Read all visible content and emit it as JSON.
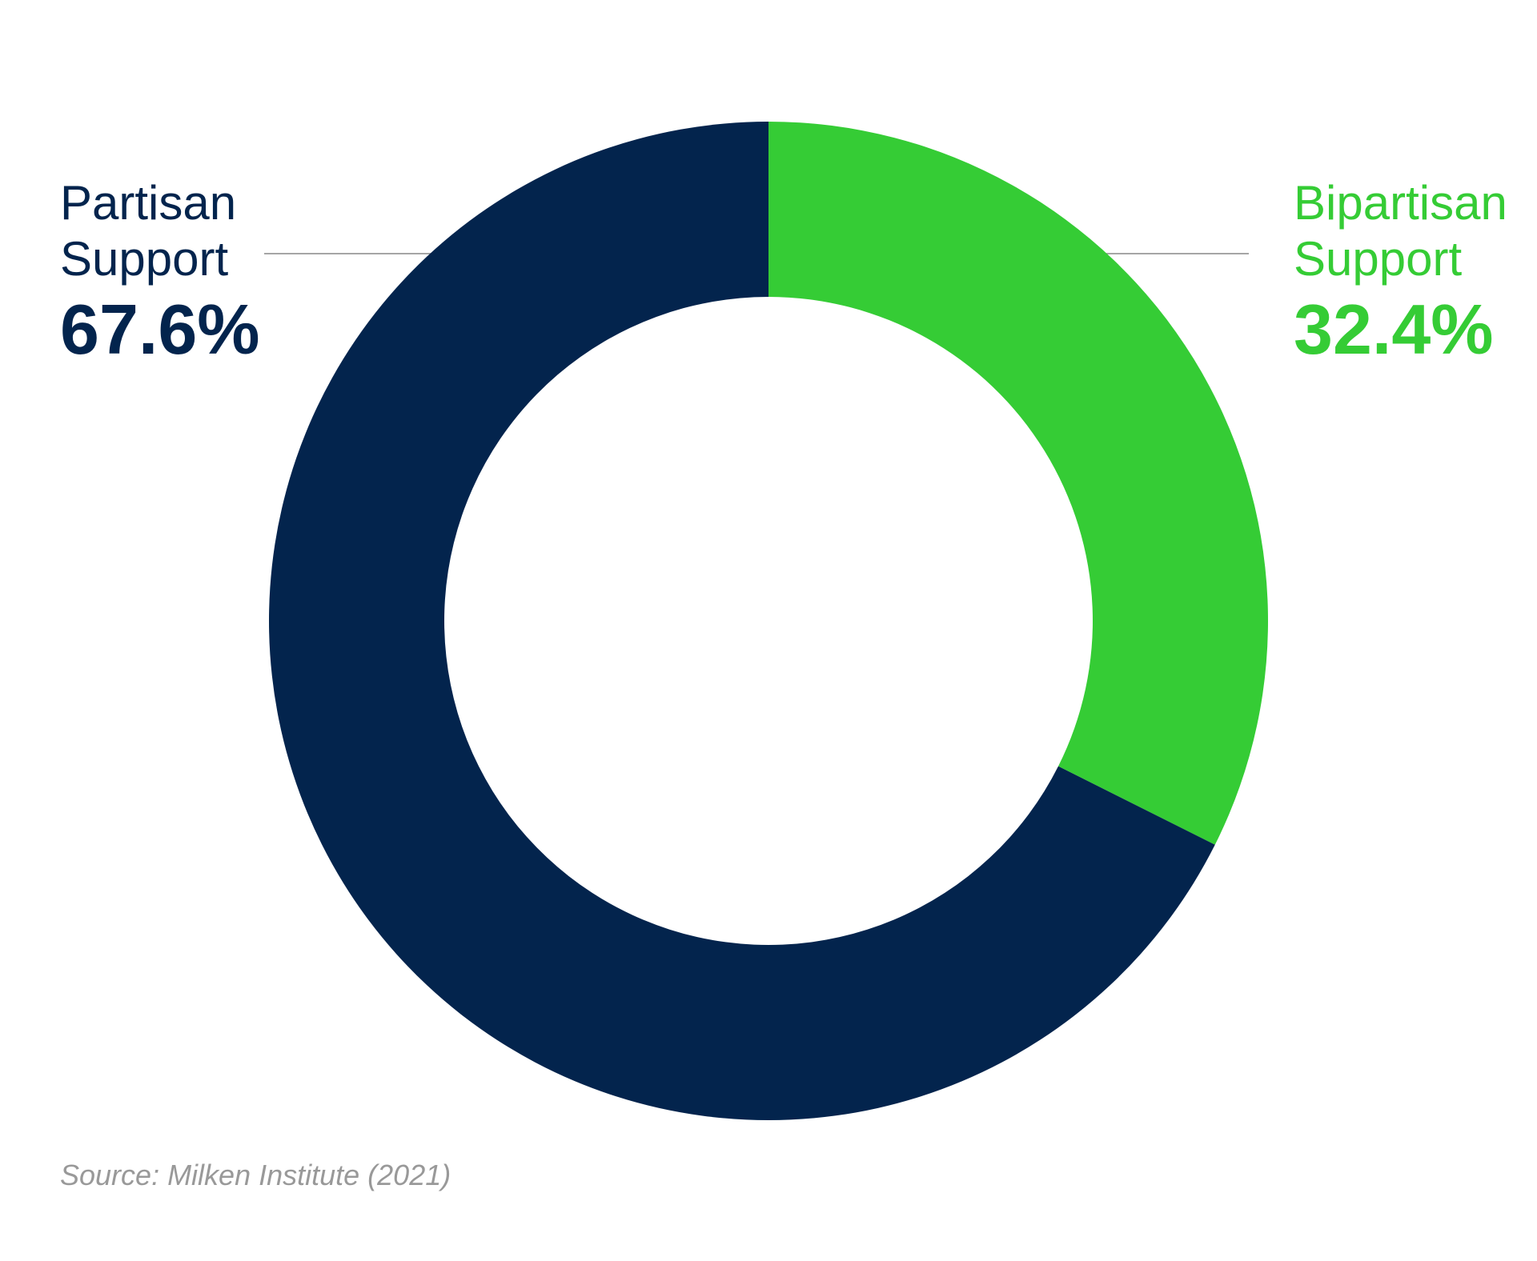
{
  "chart_data": {
    "type": "pie",
    "variant": "donut",
    "categories": [
      "Partisan Support",
      "Bipartisan Support"
    ],
    "values": [
      67.6,
      32.4
    ],
    "unit": "%",
    "colors": [
      "#03244d",
      "#35cc35"
    ],
    "title": "",
    "legend": "none",
    "grid": false
  },
  "labels": {
    "partisan": {
      "line1": "Partisan",
      "line2": "Support",
      "value": "67.6%",
      "color": "#03244d"
    },
    "bipartisan": {
      "line1": "Bipartisan",
      "line2": "Support",
      "value": "32.4%",
      "color": "#35cc35"
    }
  },
  "source": "Source: Milken Institute (2021)",
  "leader_line_color": "#888888"
}
